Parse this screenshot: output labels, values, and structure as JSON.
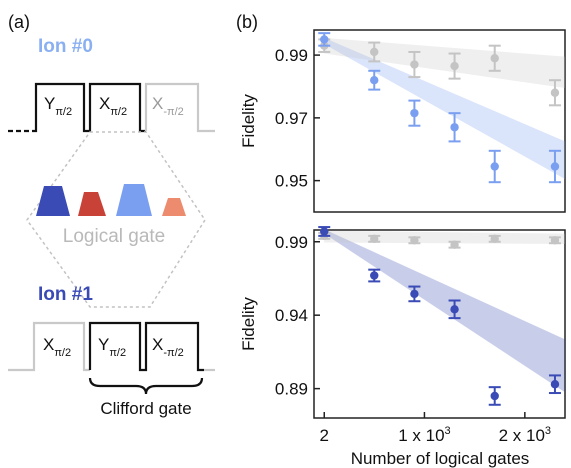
{
  "panel_a": {
    "label": "(a)",
    "ion0_label": "Ion #0",
    "ion1_label": "Ion #1",
    "logical_gate_label": "Logical gate",
    "clifford_label": "Clifford gate",
    "ion0_pulses": [
      {
        "base": "Y",
        "sub": "π/2",
        "style": "dark"
      },
      {
        "base": "X",
        "sub": "π/2",
        "style": "dark"
      },
      {
        "base": "X",
        "sub": "-π/2",
        "style": "light"
      }
    ],
    "ion1_pulses": [
      {
        "base": "X",
        "sub": "π/2",
        "style": "light"
      },
      {
        "base": "Y",
        "sub": "π/2",
        "style": "dark"
      },
      {
        "base": "X",
        "sub": "-π/2",
        "style": "dark"
      }
    ],
    "pulse_colors": [
      "#3a4bb5",
      "#c84238",
      "#7b9ff0",
      "#ec8b6e"
    ]
  },
  "panel_b": {
    "label": "(b)",
    "xlabel": "Number of logical gates",
    "xticks": [
      {
        "value": 2,
        "label": "2"
      },
      {
        "value": 1000,
        "label": "1 x 10",
        "sup": "3"
      },
      {
        "value": 2000,
        "label": "2 x 10",
        "sup": "3"
      }
    ]
  },
  "chart_data": [
    {
      "type": "scatter",
      "title": "",
      "ylabel": "Fidelity",
      "xlabel": "",
      "xlim": [
        -100,
        2400
      ],
      "ylim": [
        0.94,
        0.998
      ],
      "yticks": [
        0.99,
        0.97,
        0.95
      ],
      "ytick_labels": [
        "0.99",
        "0.97",
        "0.95"
      ],
      "series": [
        {
          "color": "#7b9ff0",
          "x": [
            2,
            500,
            900,
            1300,
            1700,
            2300
          ],
          "y": [
            0.995,
            0.982,
            0.9715,
            0.967,
            0.9545,
            0.9545
          ],
          "err": [
            0.002,
            0.003,
            0.004,
            0.0045,
            0.005,
            0.005
          ],
          "band_lower": [
            0.9935,
            0.9505
          ],
          "band_upper": [
            0.9955,
            0.9625
          ]
        },
        {
          "color": "#c4c4c4",
          "x": [
            2,
            500,
            900,
            1300,
            1700,
            2300
          ],
          "y": [
            0.993,
            0.991,
            0.987,
            0.9865,
            0.989,
            0.978
          ],
          "err": [
            0.002,
            0.003,
            0.004,
            0.004,
            0.004,
            0.004
          ],
          "band_lower": [
            0.9905,
            0.9795
          ],
          "band_upper": [
            0.9955,
            0.9895
          ]
        }
      ]
    },
    {
      "type": "scatter",
      "title": "",
      "ylabel": "Fidelity",
      "xlabel": "",
      "xlim": [
        -100,
        2400
      ],
      "ylim": [
        0.87,
        0.998
      ],
      "yticks": [
        0.99,
        0.94,
        0.89
      ],
      "ytick_labels": [
        "0.99",
        "0.94",
        "0.89"
      ],
      "series": [
        {
          "color": "#3a4bb5",
          "x": [
            2,
            500,
            900,
            1300,
            1700,
            2300
          ],
          "y": [
            0.997,
            0.967,
            0.9545,
            0.944,
            0.885,
            0.893
          ],
          "err": [
            0.003,
            0.004,
            0.005,
            0.006,
            0.006,
            0.006
          ],
          "band_lower": [
            0.9955,
            0.8875
          ],
          "band_upper": [
            0.9985,
            0.9235
          ]
        },
        {
          "color": "#c4c4c4",
          "x": [
            2,
            500,
            900,
            1300,
            1700,
            2300
          ],
          "y": [
            0.994,
            0.992,
            0.991,
            0.988,
            0.992,
            0.991
          ],
          "err": [
            0.002,
            0.002,
            0.002,
            0.002,
            0.002,
            0.002
          ],
          "band_lower": [
            0.9895,
            0.9885
          ],
          "band_upper": [
            0.9975,
            0.9955
          ]
        }
      ]
    }
  ]
}
